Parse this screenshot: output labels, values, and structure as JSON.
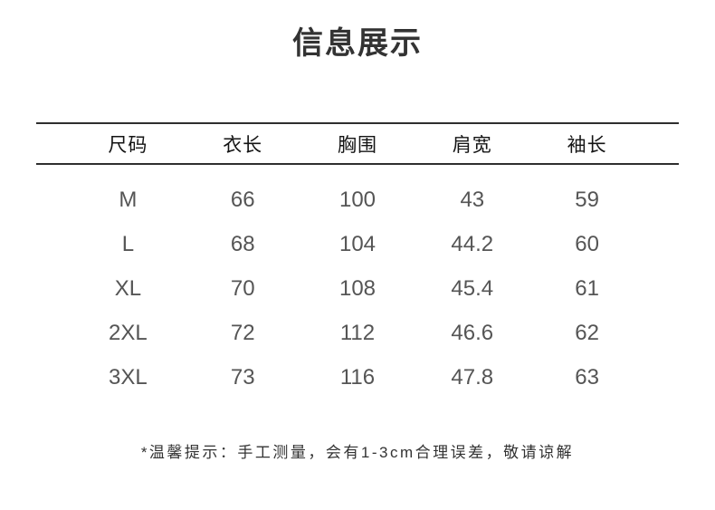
{
  "page": {
    "title": "信息展示",
    "footnote": "*温馨提示：手工测量，会有1-3cm合理误差，敬请谅解"
  },
  "size_chart": {
    "columns": [
      "尺码",
      "衣长",
      "胸围",
      "肩宽",
      "袖长"
    ],
    "rows": [
      [
        "M",
        "66",
        "100",
        "43",
        "59"
      ],
      [
        "L",
        "68",
        "104",
        "44.2",
        "60"
      ],
      [
        "XL",
        "70",
        "108",
        "45.4",
        "61"
      ],
      [
        "2XL",
        "72",
        "112",
        "46.6",
        "62"
      ],
      [
        "3XL",
        "73",
        "116",
        "47.8",
        "63"
      ]
    ]
  },
  "colors": {
    "background": "#ffffff",
    "title_text": "#333333",
    "header_text": "#141414",
    "value_text": "#555555",
    "rule_line": "#2e2e2e",
    "footnote_text": "#333333"
  }
}
